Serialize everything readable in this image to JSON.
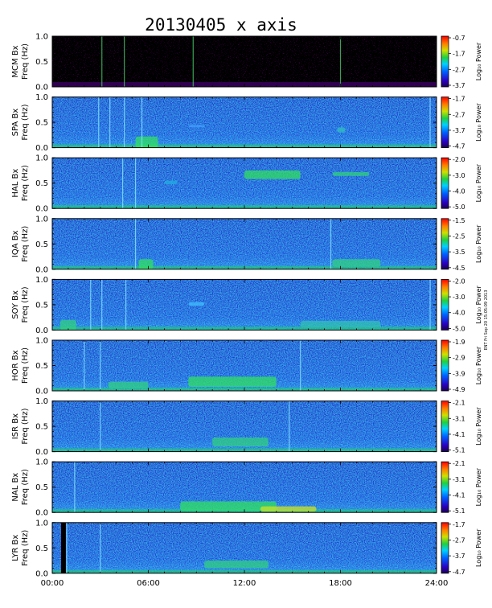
{
  "chart_data": {
    "type": "heatmap",
    "title": "20130405 x axis",
    "x_tick_labels": [
      "00:00",
      "06:00",
      "12:00",
      "18:00",
      "24:00"
    ],
    "x_range_hours": [
      0,
      24
    ],
    "y_tick_labels": [
      "0.0",
      "0.5",
      "1.0"
    ],
    "y_range_hz": [
      0,
      1
    ],
    "colorbar_label": "Log₁₀ Power",
    "side_note": "ENT Fri Sep 20 15:05:09 2013",
    "panels": [
      {
        "station": "MCM Bx",
        "ylabel": "Freq (Hz)",
        "colorbar_ticks": [
          "-0.7",
          "-1.7",
          "-2.7",
          "-3.7"
        ],
        "background": "dark"
      },
      {
        "station": "SPA Bx",
        "ylabel": "Freq (Hz)",
        "colorbar_ticks": [
          "-1.7",
          "-2.7",
          "-3.7",
          "-4.7"
        ],
        "background": "noise"
      },
      {
        "station": "HAL Bx",
        "ylabel": "Freq (Hz)",
        "colorbar_ticks": [
          "-2.0",
          "-3.0",
          "-4.0",
          "-5.0"
        ],
        "background": "noise"
      },
      {
        "station": "IQA Bx",
        "ylabel": "Freq (Hz)",
        "colorbar_ticks": [
          "-1.5",
          "-2.5",
          "-3.5",
          "-4.5"
        ],
        "background": "noise"
      },
      {
        "station": "SOY Bx",
        "ylabel": "Freq (Hz)",
        "colorbar_ticks": [
          "-2.0",
          "-3.0",
          "-4.0",
          "-5.0"
        ],
        "background": "noise"
      },
      {
        "station": "HOR Bx",
        "ylabel": "Freq (Hz)",
        "colorbar_ticks": [
          "-1.9",
          "-2.9",
          "-3.9",
          "-4.9"
        ],
        "background": "noise"
      },
      {
        "station": "ISR Bx",
        "ylabel": "Freq (Hz)",
        "colorbar_ticks": [
          "-2.1",
          "-3.1",
          "-4.1",
          "-5.1"
        ],
        "background": "noise"
      },
      {
        "station": "NAL Bx",
        "ylabel": "Freq (Hz)",
        "colorbar_ticks": [
          "-2.1",
          "-3.1",
          "-4.1",
          "-5.1"
        ],
        "background": "noise"
      },
      {
        "station": "LYR Bx",
        "ylabel": "Freq (Hz)",
        "colorbar_ticks": [
          "-1.7",
          "-2.7",
          "-3.7",
          "-4.7"
        ],
        "background": "noise"
      }
    ]
  }
}
